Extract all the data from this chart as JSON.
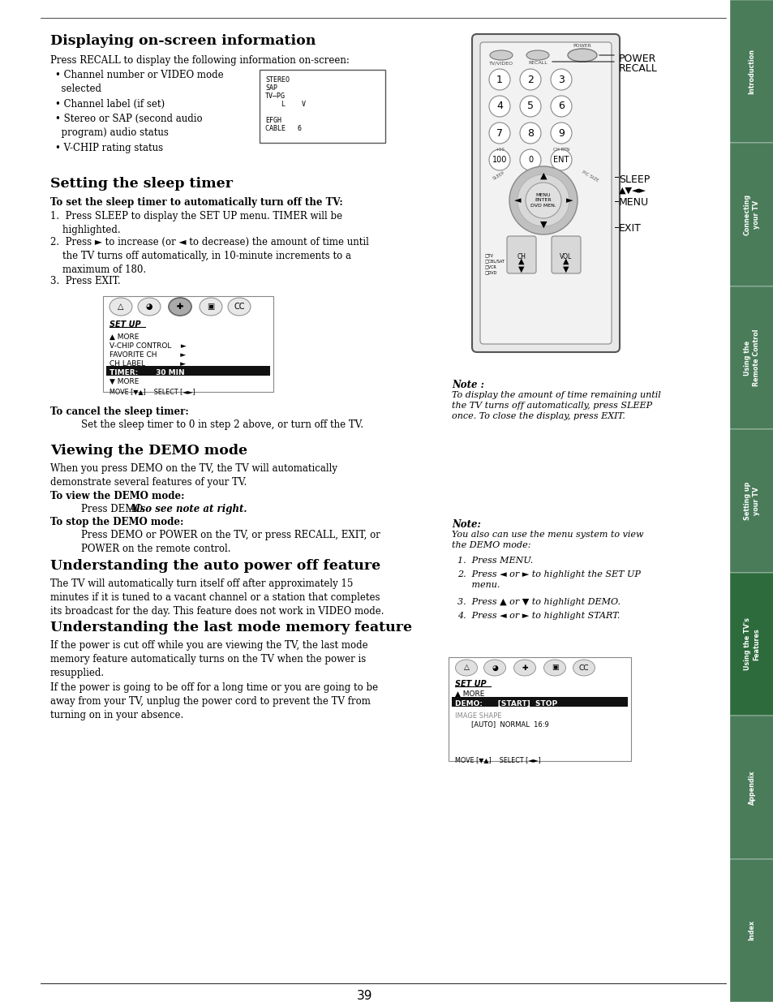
{
  "page_bg": "#ffffff",
  "page_number": "39",
  "sidebar_bg": "#4a7c5a",
  "sidebar_active_bg": "#2d6b3c",
  "sidebar_active_idx": 4,
  "sidebar_labels": [
    "Introduction",
    "Connecting\nyour TV",
    "Using the\nRemote Control",
    "Setting up\nyour TV",
    "Using the TV's\nFeatures",
    "Appendix",
    "Index"
  ]
}
